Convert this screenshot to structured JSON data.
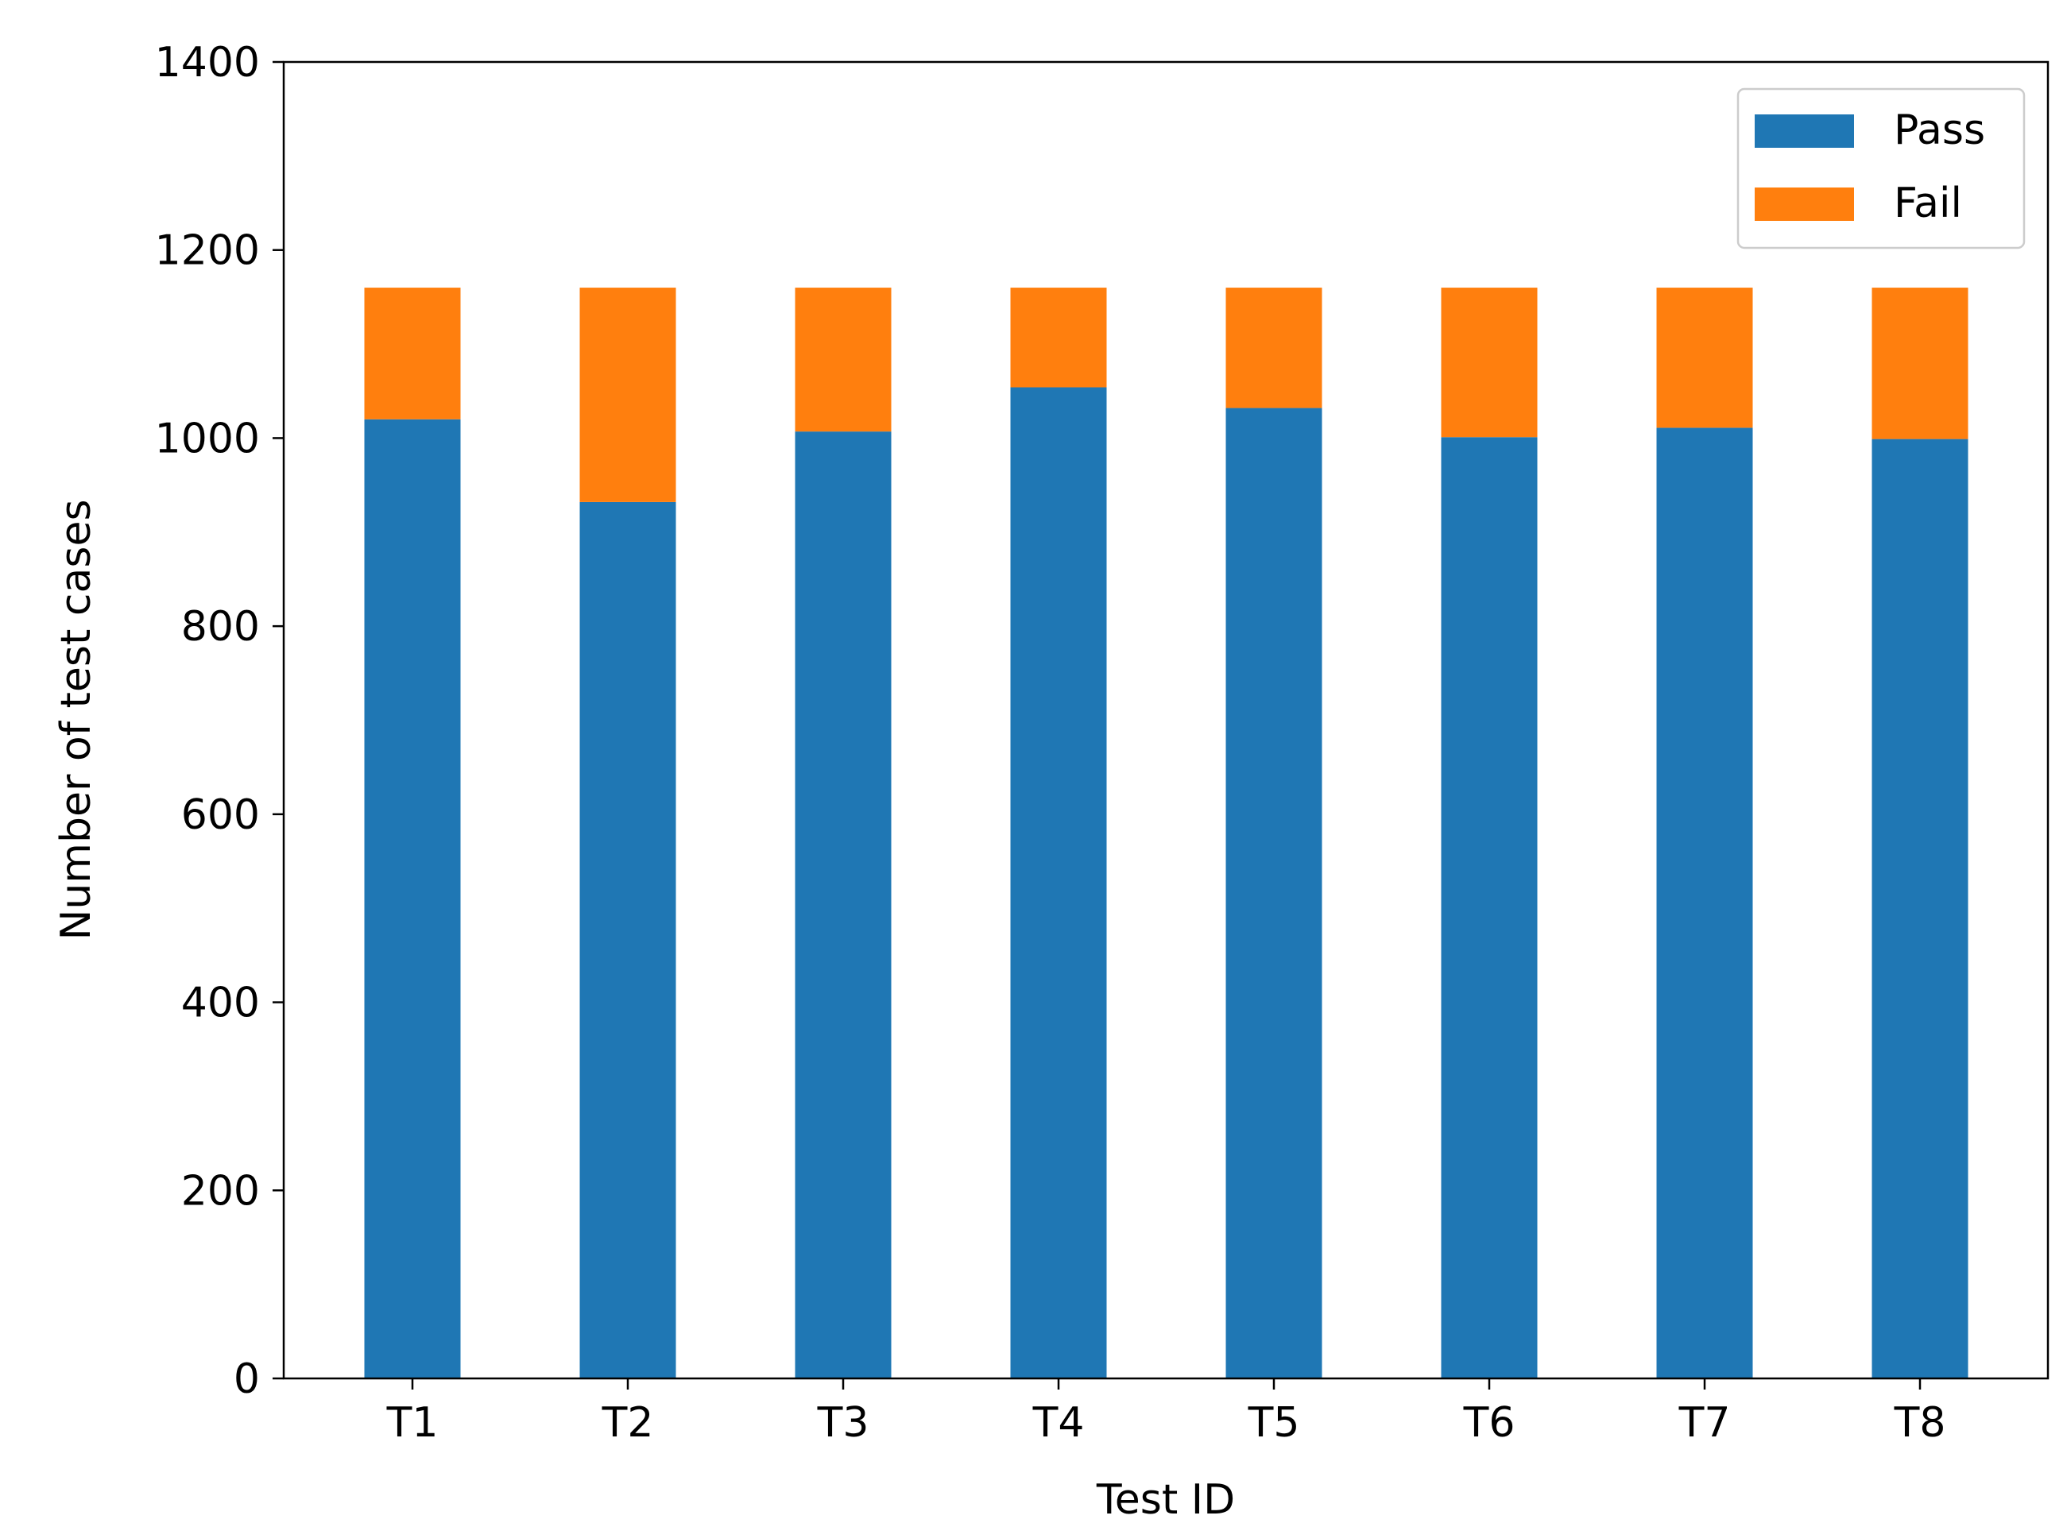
{
  "chart_data": {
    "type": "bar",
    "stacked": true,
    "categories": [
      "T1",
      "T2",
      "T3",
      "T4",
      "T5",
      "T6",
      "T7",
      "T8"
    ],
    "series": [
      {
        "name": "Pass",
        "color": "#1f77b4",
        "values": [
          1020,
          932,
          1007,
          1054,
          1032,
          1001,
          1011,
          999
        ]
      },
      {
        "name": "Fail",
        "color": "#ff7f0e",
        "values": [
          140,
          228,
          153,
          106,
          128,
          159,
          149,
          161
        ]
      }
    ],
    "title": "",
    "xlabel": "Test ID",
    "ylabel": "Number of test cases",
    "ylim": [
      0,
      1400
    ],
    "yticks": [
      "0",
      "200",
      "400",
      "600",
      "800",
      "1000",
      "1200",
      "1400"
    ],
    "grid": false,
    "legend_position": "top-right"
  }
}
